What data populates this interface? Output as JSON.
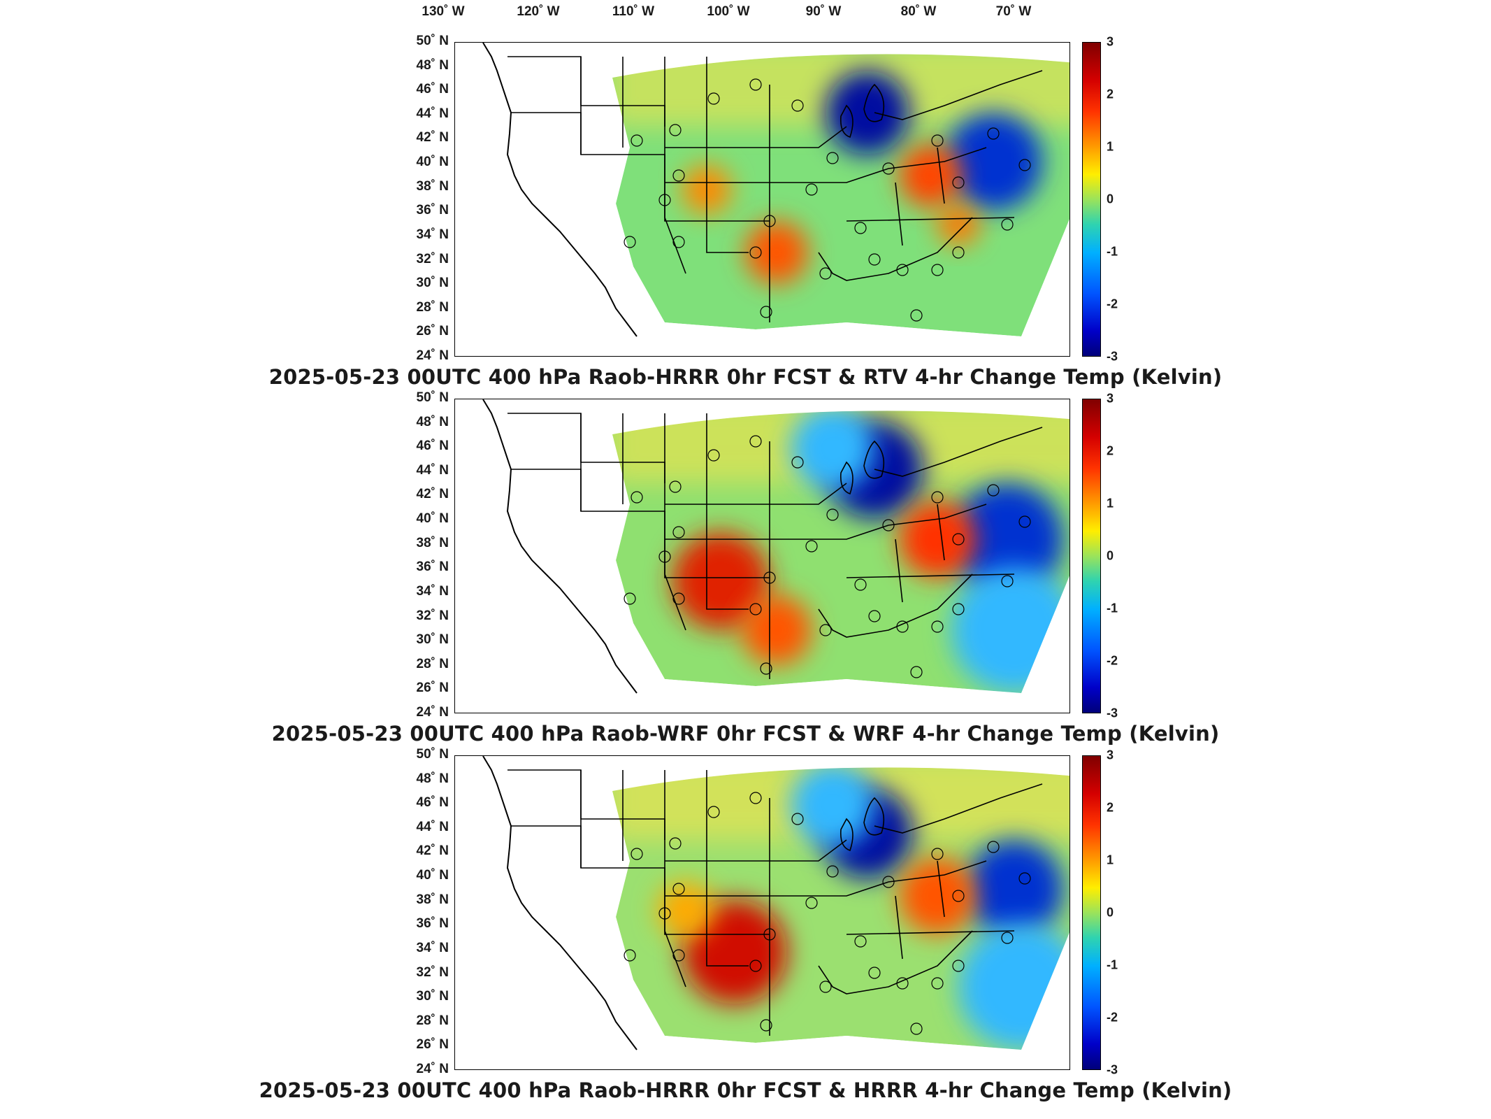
{
  "longitude_labels": [
    "130˚ W",
    "120˚ W",
    "110˚ W",
    "100˚ W",
    "90˚ W",
    "80˚ W",
    "70˚ W"
  ],
  "latitude_labels": [
    "50˚ N",
    "48˚ N",
    "46˚ N",
    "44˚ N",
    "42˚ N",
    "40˚ N",
    "38˚ N",
    "36˚ N",
    "34˚ N",
    "32˚ N",
    "30˚ N",
    "28˚ N",
    "26˚ N",
    "24˚ N"
  ],
  "colorbar": {
    "ticks": [
      "3",
      "2",
      "1",
      "0",
      "-1",
      "-2",
      "-3"
    ],
    "min": -3,
    "max": 3,
    "unit": "Kelvin",
    "colors": [
      "#800000",
      "#ff3300",
      "#ffee00",
      "#2fd3b0",
      "#00b0ff",
      "#0000c8"
    ]
  },
  "panels": [
    {
      "caption": "2025-05-23 00UTC 400 hPa Raob-HRRR 0hr FCST & RTV 4-hr Change Temp (Kelvin)"
    },
    {
      "caption": "2025-05-23 00UTC 400 hPa Raob-WRF 0hr FCST & WRF 4-hr Change Temp (Kelvin)"
    },
    {
      "caption": "2025-05-23 00UTC 400 hPa Raob-HRRR 0hr FCST & HRRR 4-hr Change Temp (Kelvin)"
    }
  ]
}
